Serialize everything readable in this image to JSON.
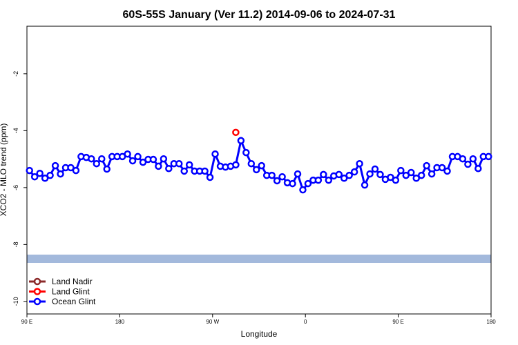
{
  "chart_data": {
    "type": "line",
    "title": "60S-55S January (Ver 11.2)   2014-09-06 to 2024-07-31",
    "x_label": "Longitude",
    "y_label": "XCO2 - MLO trend (ppm)",
    "xlim": [
      90,
      540
    ],
    "xticks": [
      {
        "value": 90,
        "label": "90 E"
      },
      180,
      {
        "value": 270,
        "label": "90 W"
      },
      {
        "value": 360,
        "label": "0"
      },
      {
        "value": 450,
        "label": "90 E"
      },
      {
        "value": 540,
        "label": "180"
      }
    ],
    "ylim": [
      -10.44,
      -0.33
    ],
    "yticks": [
      -2,
      -4,
      -6,
      -8,
      -10
    ],
    "legend": "bottom-left",
    "series": [
      {
        "name": "Land Nadir",
        "color": "#8b2a2a",
        "x": [],
        "values": []
      },
      {
        "name": "Land Glint",
        "color": "#ff0000",
        "x": [
          292.5
        ],
        "values": [
          -4.06
        ]
      },
      {
        "name": "Ocean Glint",
        "color": "#0000ff",
        "x": [
          92.5,
          97.5,
          102.5,
          107.5,
          112.5,
          117.5,
          122.5,
          127.5,
          132.5,
          137.5,
          142.5,
          147.5,
          152.5,
          157.5,
          162.5,
          167.5,
          172.5,
          177.5,
          182.5,
          187.5,
          192.5,
          197.5,
          202.5,
          207.5,
          212.5,
          217.5,
          222.5,
          227.5,
          232.5,
          237.5,
          242.5,
          247.5,
          252.5,
          257.5,
          262.5,
          267.5,
          272.5,
          277.5,
          282.5,
          287.5,
          292.5,
          297.5,
          302.5,
          307.5,
          312.5,
          317.5,
          322.5,
          327.5,
          332.5,
          337.5,
          342.5,
          347.5,
          352.5,
          357.5,
          362.5,
          367.5,
          372.5,
          377.5,
          382.5,
          387.5,
          392.5,
          397.5,
          402.5,
          407.5,
          412.5,
          417.5,
          422.5,
          427.5,
          432.5,
          437.5,
          442.5,
          447.5,
          452.5,
          457.5,
          462.5,
          467.5,
          472.5,
          477.5,
          482.5,
          487.5,
          492.5,
          497.5,
          502.5,
          507.5,
          512.5,
          517.5,
          522.5,
          527.5,
          532.5,
          537.5
        ],
        "values": [
          -5.4,
          -5.62,
          -5.5,
          -5.67,
          -5.57,
          -5.23,
          -5.52,
          -5.3,
          -5.3,
          -5.4,
          -4.91,
          -4.94,
          -4.99,
          -5.16,
          -4.99,
          -5.35,
          -4.91,
          -4.91,
          -4.91,
          -4.82,
          -5.06,
          -4.91,
          -5.11,
          -5.01,
          -5.01,
          -5.25,
          -4.99,
          -5.33,
          -5.16,
          -5.16,
          -5.42,
          -5.2,
          -5.42,
          -5.42,
          -5.42,
          -5.64,
          -4.82,
          -5.25,
          -5.28,
          -5.25,
          -5.2,
          -4.35,
          -4.77,
          -5.16,
          -5.37,
          -5.23,
          -5.57,
          -5.57,
          -5.76,
          -5.62,
          -5.83,
          -5.86,
          -5.52,
          -6.08,
          -5.86,
          -5.74,
          -5.74,
          -5.54,
          -5.74,
          -5.59,
          -5.54,
          -5.67,
          -5.57,
          -5.45,
          -5.16,
          -5.91,
          -5.52,
          -5.35,
          -5.54,
          -5.71,
          -5.64,
          -5.74,
          -5.4,
          -5.57,
          -5.47,
          -5.67,
          -5.57,
          -5.23,
          -5.52,
          -5.3,
          -5.3,
          -5.42,
          -4.91,
          -4.91,
          -4.99,
          -5.18,
          -4.99,
          -5.33,
          -4.91,
          -4.91
        ]
      }
    ]
  }
}
